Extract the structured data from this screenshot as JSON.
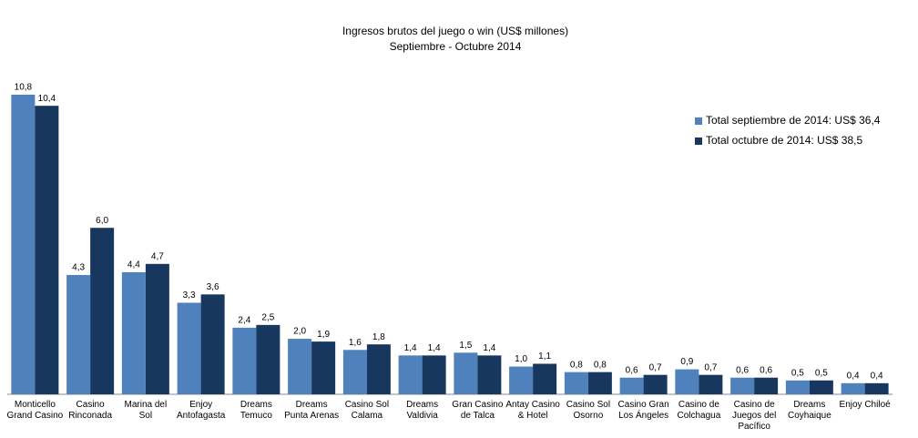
{
  "chart_data": {
    "type": "bar",
    "title": "Ingresos brutos del juego o win (US$ millones)",
    "subtitle": "Septiembre - Octubre 2014",
    "categories": [
      "Monticello Grand Casino",
      "Casino Rinconada",
      "Marina del Sol",
      "Enjoy Antofagasta",
      "Dreams Temuco",
      "Dreams Punta Arenas",
      "Casino Sol Calama",
      "Dreams Valdivia",
      "Gran Casino de Talca",
      "Antay Casino & Hotel",
      "Casino Sol Osorno",
      "Casino Gran Los Ángeles",
      "Casino de Colchagua",
      "Casino de Juegos del Pacífico",
      "Dreams Coyhaique",
      "Enjoy Chiloé"
    ],
    "series": [
      {
        "name": "Total septiembre de 2014: US$ 36,4",
        "color": "#4f81bd",
        "values": [
          10.8,
          4.3,
          4.4,
          3.3,
          2.4,
          2.0,
          1.6,
          1.4,
          1.5,
          1.0,
          0.8,
          0.6,
          0.9,
          0.6,
          0.5,
          0.4
        ],
        "value_labels": [
          "10,8",
          "4,3",
          "4,4",
          "3,3",
          "2,4",
          "2,0",
          "1,6",
          "1,4",
          "1,5",
          "1,0",
          "0,8",
          "0,6",
          "0,9",
          "0,6",
          "0,5",
          "0,4"
        ]
      },
      {
        "name": "Total octubre de 2014: US$ 38,5",
        "color": "#17375e",
        "values": [
          10.4,
          6.0,
          4.7,
          3.6,
          2.5,
          1.9,
          1.8,
          1.4,
          1.4,
          1.1,
          0.8,
          0.7,
          0.7,
          0.6,
          0.5,
          0.4
        ],
        "value_labels": [
          "10,4",
          "6,0",
          "4,7",
          "3,6",
          "2,5",
          "1,9",
          "1,8",
          "1,4",
          "1,4",
          "1,1",
          "0,8",
          "0,7",
          "0,7",
          "0,6",
          "0,5",
          "0,4"
        ]
      }
    ],
    "legend": "right"
  }
}
